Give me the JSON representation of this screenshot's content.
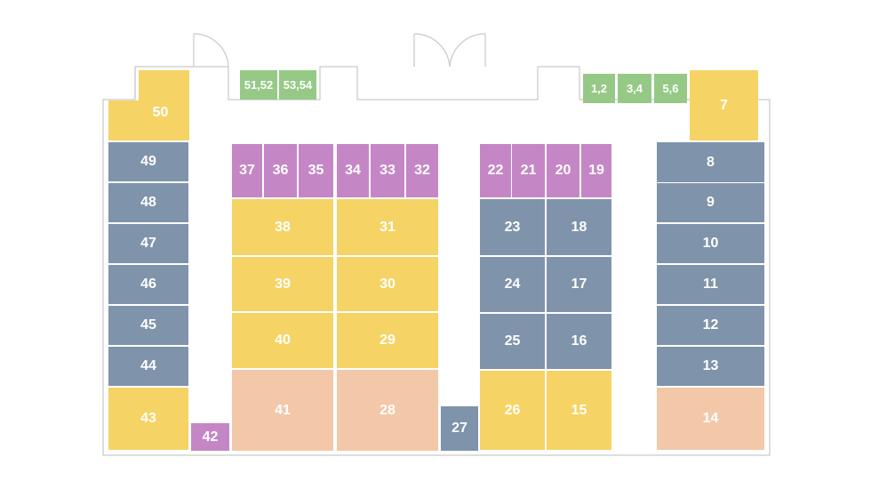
{
  "colors": {
    "yellow": "#f6d365",
    "slate": "#7f93ab",
    "purple": "#c586c6",
    "peach": "#f2c8a8",
    "green": "#96c986",
    "wall": "#c9c9c9"
  },
  "booths": [
    {
      "id": "1,2",
      "color": "green"
    },
    {
      "id": "3,4",
      "color": "green"
    },
    {
      "id": "5,6",
      "color": "green"
    },
    {
      "id": "7",
      "color": "yellow"
    },
    {
      "id": "8",
      "color": "slate"
    },
    {
      "id": "9",
      "color": "slate"
    },
    {
      "id": "10",
      "color": "slate"
    },
    {
      "id": "11",
      "color": "slate"
    },
    {
      "id": "12",
      "color": "slate"
    },
    {
      "id": "13",
      "color": "slate"
    },
    {
      "id": "14",
      "color": "peach"
    },
    {
      "id": "15",
      "color": "yellow"
    },
    {
      "id": "16",
      "color": "slate"
    },
    {
      "id": "17",
      "color": "slate"
    },
    {
      "id": "18",
      "color": "slate"
    },
    {
      "id": "19",
      "color": "purple"
    },
    {
      "id": "20",
      "color": "purple"
    },
    {
      "id": "21",
      "color": "purple"
    },
    {
      "id": "22",
      "color": "purple"
    },
    {
      "id": "23",
      "color": "slate"
    },
    {
      "id": "24",
      "color": "slate"
    },
    {
      "id": "25",
      "color": "slate"
    },
    {
      "id": "26",
      "color": "yellow"
    },
    {
      "id": "27",
      "color": "slate"
    },
    {
      "id": "28",
      "color": "peach"
    },
    {
      "id": "29",
      "color": "yellow"
    },
    {
      "id": "30",
      "color": "yellow"
    },
    {
      "id": "31",
      "color": "yellow"
    },
    {
      "id": "32",
      "color": "purple"
    },
    {
      "id": "33",
      "color": "purple"
    },
    {
      "id": "34",
      "color": "purple"
    },
    {
      "id": "35",
      "color": "purple"
    },
    {
      "id": "36",
      "color": "purple"
    },
    {
      "id": "37",
      "color": "purple"
    },
    {
      "id": "38",
      "color": "yellow"
    },
    {
      "id": "39",
      "color": "yellow"
    },
    {
      "id": "40",
      "color": "yellow"
    },
    {
      "id": "41",
      "color": "peach"
    },
    {
      "id": "42",
      "color": "purple"
    },
    {
      "id": "43",
      "color": "yellow"
    },
    {
      "id": "44",
      "color": "slate"
    },
    {
      "id": "45",
      "color": "slate"
    },
    {
      "id": "46",
      "color": "slate"
    },
    {
      "id": "47",
      "color": "slate"
    },
    {
      "id": "48",
      "color": "slate"
    },
    {
      "id": "49",
      "color": "slate"
    },
    {
      "id": "50",
      "color": "yellow"
    },
    {
      "id": "51,52",
      "color": "green"
    },
    {
      "id": "53,54",
      "color": "green"
    }
  ]
}
